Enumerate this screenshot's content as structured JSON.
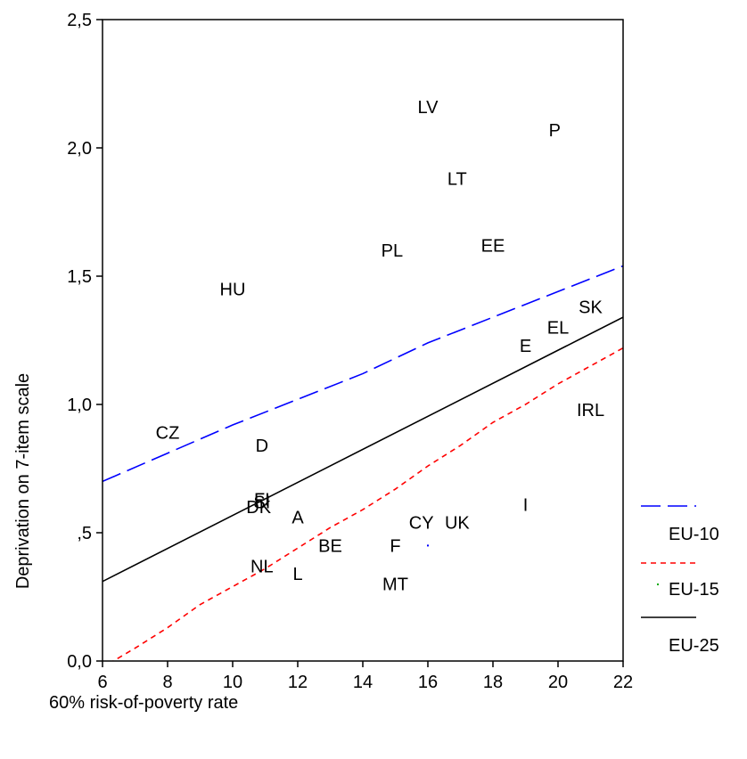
{
  "chart_data": {
    "type": "scatter",
    "xlabel": "60% risk-of-poverty rate",
    "ylabel": "Deprivation on 7-item scale",
    "xlim": [
      6,
      22
    ],
    "ylim": [
      0.0,
      2.5
    ],
    "x_ticks": [
      {
        "value": 6,
        "label": "6"
      },
      {
        "value": 8,
        "label": "8"
      },
      {
        "value": 10,
        "label": "10"
      },
      {
        "value": 12,
        "label": "12"
      },
      {
        "value": 14,
        "label": "14"
      },
      {
        "value": 16,
        "label": "16"
      },
      {
        "value": 18,
        "label": "18"
      },
      {
        "value": 20,
        "label": "20"
      },
      {
        "value": 22,
        "label": "22"
      }
    ],
    "y_ticks": [
      {
        "value": 0.0,
        "label": "0,0"
      },
      {
        "value": 0.5,
        "label": ",5"
      },
      {
        "value": 1.0,
        "label": "1,0"
      },
      {
        "value": 1.5,
        "label": "1,5"
      },
      {
        "value": 2.0,
        "label": "2,0"
      },
      {
        "value": 2.5,
        "label": "2,5"
      }
    ],
    "points": [
      {
        "label": "LV",
        "x": 16.0,
        "y": 2.16
      },
      {
        "label": "P",
        "x": 19.9,
        "y": 2.07
      },
      {
        "label": "LT",
        "x": 16.9,
        "y": 1.88
      },
      {
        "label": "PL",
        "x": 14.9,
        "y": 1.6
      },
      {
        "label": "EE",
        "x": 18.0,
        "y": 1.62
      },
      {
        "label": "HU",
        "x": 10.0,
        "y": 1.45
      },
      {
        "label": "SK",
        "x": 21.0,
        "y": 1.38
      },
      {
        "label": "EL",
        "x": 20.0,
        "y": 1.3
      },
      {
        "label": "E",
        "x": 19.0,
        "y": 1.23
      },
      {
        "label": "IRL",
        "x": 21.0,
        "y": 0.98
      },
      {
        "label": "CZ",
        "x": 8.0,
        "y": 0.89
      },
      {
        "label": "D",
        "x": 10.9,
        "y": 0.84
      },
      {
        "label": "FI",
        "x": 10.9,
        "y": 0.63
      },
      {
        "label": "SI",
        "x": 10.9,
        "y": 0.62
      },
      {
        "label": "DK",
        "x": 10.8,
        "y": 0.6
      },
      {
        "label": "I",
        "x": 19.0,
        "y": 0.61
      },
      {
        "label": "A",
        "x": 12.0,
        "y": 0.56
      },
      {
        "label": "CY",
        "x": 15.8,
        "y": 0.54
      },
      {
        "label": "UK",
        "x": 16.9,
        "y": 0.54
      },
      {
        "label": "BE",
        "x": 13.0,
        "y": 0.45
      },
      {
        "label": "F",
        "x": 15.0,
        "y": 0.45
      },
      {
        "label": "NL",
        "x": 10.9,
        "y": 0.37
      },
      {
        "label": "L",
        "x": 12.0,
        "y": 0.34
      },
      {
        "label": "MT",
        "x": 15.0,
        "y": 0.3
      }
    ],
    "series": [
      {
        "name": "EU-10",
        "style": "long-dash",
        "color": "#0000ff",
        "x": [
          6,
          8,
          10,
          12,
          14,
          16,
          18,
          20,
          22
        ],
        "y": [
          0.7,
          0.81,
          0.92,
          1.02,
          1.12,
          1.24,
          1.34,
          1.44,
          1.54
        ]
      },
      {
        "name": "EU-15",
        "style": "short-dash",
        "color": "#ff0000",
        "x": [
          6.2,
          7,
          8,
          9,
          10,
          11,
          12,
          13,
          14,
          15,
          16,
          17,
          18,
          19,
          20,
          21,
          22
        ],
        "y": [
          -0.01,
          0.05,
          0.13,
          0.22,
          0.29,
          0.36,
          0.44,
          0.52,
          0.59,
          0.67,
          0.76,
          0.84,
          0.93,
          1.0,
          1.08,
          1.15,
          1.22
        ]
      },
      {
        "name": "EU-25",
        "style": "solid",
        "color": "#000000",
        "x": [
          6,
          22
        ],
        "y": [
          0.31,
          1.34
        ]
      }
    ],
    "marker": {
      "x": 16.0,
      "y": 0.45,
      "color": "#0000ff"
    },
    "legend": "right"
  }
}
